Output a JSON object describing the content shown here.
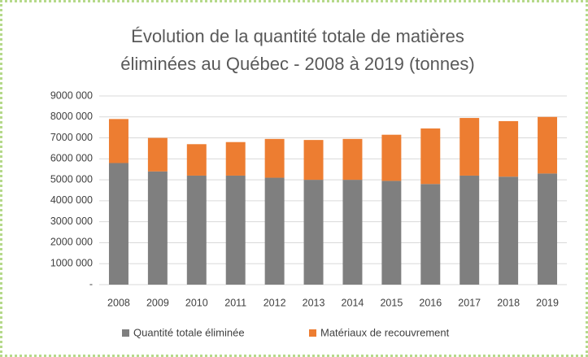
{
  "chart_data": {
    "type": "stacked-bar",
    "title": "Évolution de la quantité totale de matières éliminées au Québec - 2008 à 2019 (tonnes)",
    "categories": [
      "2008",
      "2009",
      "2010",
      "2011",
      "2012",
      "2013",
      "2014",
      "2015",
      "2016",
      "2017",
      "2018",
      "2019"
    ],
    "series": [
      {
        "name": "Quantité totale éliminée",
        "color": "#7f7f7f",
        "values": [
          5800000,
          5400000,
          5200000,
          5200000,
          5100000,
          5000000,
          5000000,
          4950000,
          4800000,
          5200000,
          5150000,
          5300000
        ]
      },
      {
        "name": "Matériaux de recouvrement",
        "color": "#ed7d31",
        "values": [
          2100000,
          1600000,
          1500000,
          1600000,
          1850000,
          1900000,
          1950000,
          2200000,
          2650000,
          2750000,
          2650000,
          2700000
        ]
      }
    ],
    "ylim": [
      0,
      9000000
    ],
    "yticks": [
      {
        "value": 0,
        "label": "-"
      },
      {
        "value": 1000000,
        "label": "1000 000"
      },
      {
        "value": 2000000,
        "label": "2000 000"
      },
      {
        "value": 3000000,
        "label": "3000 000"
      },
      {
        "value": 4000000,
        "label": "4000 000"
      },
      {
        "value": 5000000,
        "label": "5000 000"
      },
      {
        "value": 6000000,
        "label": "6000 000"
      },
      {
        "value": 7000000,
        "label": "7000 000"
      },
      {
        "value": 8000000,
        "label": "8000 000"
      },
      {
        "value": 9000000,
        "label": "9000 000"
      }
    ],
    "grid": true,
    "legend": "bottom"
  }
}
